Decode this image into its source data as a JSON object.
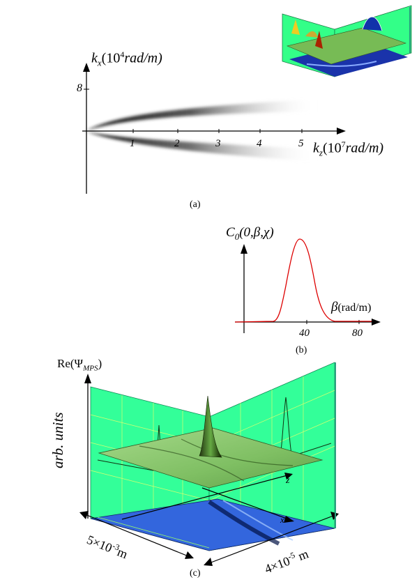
{
  "panel_a": {
    "caption": "(a)",
    "y_label_k": "k",
    "y_label_sub": "x",
    "y_label_unit_open": "(10",
    "y_label_exp": "4",
    "y_label_unit_rest": "rad/m)",
    "y_tick": "8",
    "x_label_k": "k",
    "x_label_sub": "z",
    "x_label_unit_open": "(10",
    "x_label_exp": "7",
    "x_label_unit_rest": "rad/m)",
    "x_ticks": [
      "1",
      "2",
      "3",
      "4",
      "5"
    ]
  },
  "panel_b": {
    "caption": "(b)",
    "y_label_main": "C",
    "y_label_sub": "0",
    "y_label_args": "(0,β,χ)",
    "x_label_var": "β",
    "x_label_unit": "(rad/m)",
    "x_ticks": [
      "40",
      "80"
    ],
    "curve_color": "#dd0000"
  },
  "panel_c": {
    "caption": "(c)",
    "y_label": "Re(Ψ",
    "y_label_sub": "MPS",
    "y_label_close": ")",
    "axis_units": "arb. units",
    "z_label": "z",
    "x_label": "x",
    "dim_left_base": "5×10",
    "dim_left_exp": "-3",
    "dim_left_unit": "m",
    "dim_right_base": "4×10",
    "dim_right_exp": "-5",
    "dim_right_unit": " m",
    "wall_color": "#33ff99",
    "floor_color": "#3366dd",
    "surface_color": "#88cc66"
  }
}
